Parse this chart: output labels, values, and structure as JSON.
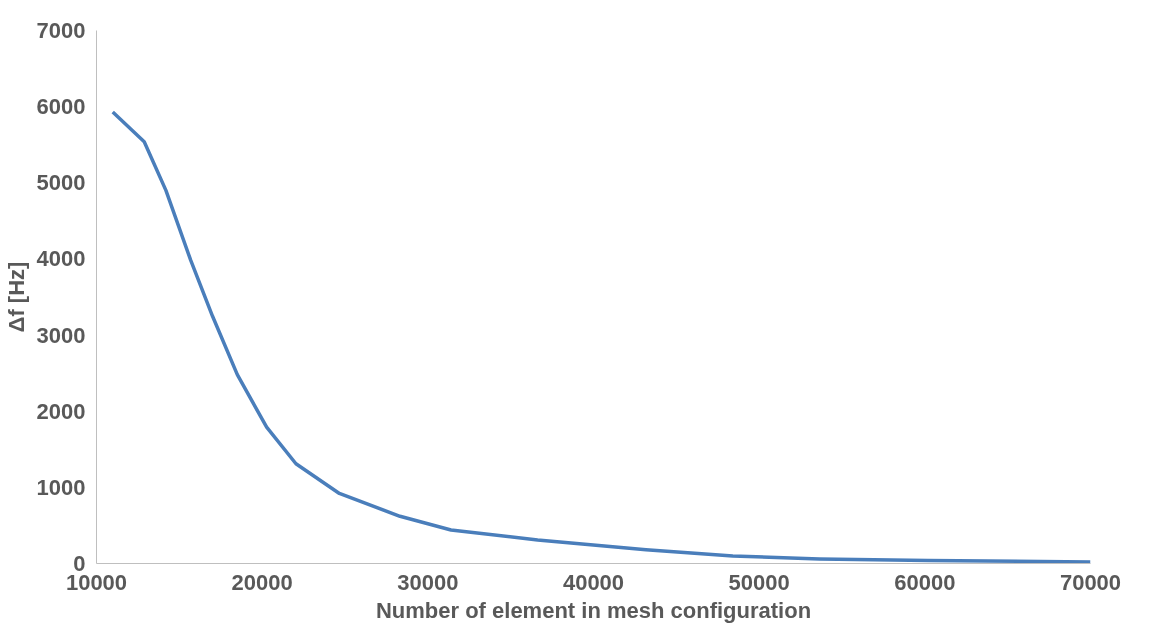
{
  "chart_data": {
    "type": "line",
    "xlabel": "Number of element in mesh configuration",
    "ylabel": "Δf [Hz]",
    "xlim": [
      10000,
      70000
    ],
    "xticks": [
      10000,
      20000,
      30000,
      40000,
      50000,
      60000,
      70000
    ],
    "ylim": [
      0,
      7000
    ],
    "yticks": [
      0,
      1000,
      2000,
      3000,
      4000,
      5000,
      6000,
      7000
    ],
    "grid": false,
    "line_style": "solid",
    "series": [
      {
        "color": "#4a7ebb",
        "x": [
          10980,
          12880,
          14190,
          15690,
          17000,
          18500,
          20270,
          22040,
          24660,
          28320,
          31400,
          36630,
          43170,
          48410,
          53640,
          60180,
          70000
        ],
        "values": [
          5930,
          5540,
          4900,
          3980,
          3250,
          2480,
          1790,
          1310,
          920,
          620,
          440,
          310,
          180,
          100,
          60,
          40,
          20
        ]
      }
    ]
  }
}
